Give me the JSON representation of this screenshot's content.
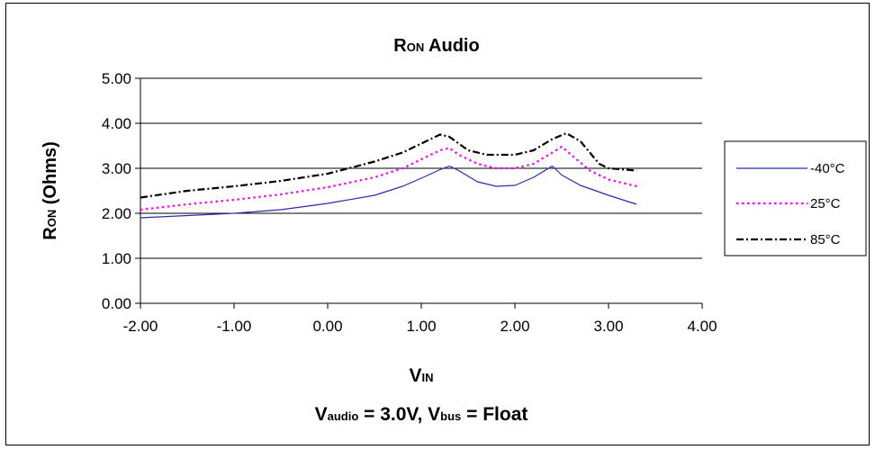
{
  "chart_data": {
    "type": "line",
    "title": {
      "main": "R",
      "sub": "ON",
      "rest": " Audio"
    },
    "ylabel": {
      "main": "R",
      "sub": "ON",
      "rest": " (Ohms)"
    },
    "xlabel": {
      "main": "V",
      "sub": "IN"
    },
    "subtitle": {
      "p1": "V",
      "p1sub": "audio",
      "p2": " = 3.0V, V",
      "p2sub": "bus",
      "p3": " = Float"
    },
    "xlim": [
      -2,
      4
    ],
    "ylim": [
      0,
      5
    ],
    "x_ticks": [
      "-2.00",
      "-1.00",
      "0.00",
      "1.00",
      "2.00",
      "3.00",
      "4.00"
    ],
    "y_ticks": [
      "0.00",
      "1.00",
      "2.00",
      "3.00",
      "4.00",
      "5.00"
    ],
    "grid": "horizontal",
    "legend_position": "right",
    "series": [
      {
        "name": "-40°C",
        "color": "#2b2bb0",
        "style": "solid",
        "points": [
          [
            -2.0,
            1.9
          ],
          [
            -1.5,
            1.95
          ],
          [
            -1.0,
            2.0
          ],
          [
            -0.5,
            2.08
          ],
          [
            0.0,
            2.22
          ],
          [
            0.5,
            2.4
          ],
          [
            0.8,
            2.6
          ],
          [
            1.0,
            2.78
          ],
          [
            1.2,
            2.97
          ],
          [
            1.3,
            3.05
          ],
          [
            1.4,
            2.95
          ],
          [
            1.6,
            2.7
          ],
          [
            1.8,
            2.6
          ],
          [
            2.0,
            2.62
          ],
          [
            2.2,
            2.8
          ],
          [
            2.4,
            3.05
          ],
          [
            2.5,
            2.85
          ],
          [
            2.7,
            2.62
          ],
          [
            3.0,
            2.4
          ],
          [
            3.3,
            2.2
          ]
        ]
      },
      {
        "name": "25°C",
        "color": "#ff00ff",
        "style": "dotted",
        "points": [
          [
            -2.0,
            2.08
          ],
          [
            -1.5,
            2.2
          ],
          [
            -1.0,
            2.3
          ],
          [
            -0.5,
            2.42
          ],
          [
            0.0,
            2.58
          ],
          [
            0.5,
            2.8
          ],
          [
            0.8,
            3.0
          ],
          [
            1.0,
            3.2
          ],
          [
            1.2,
            3.4
          ],
          [
            1.3,
            3.45
          ],
          [
            1.4,
            3.3
          ],
          [
            1.6,
            3.1
          ],
          [
            1.8,
            3.0
          ],
          [
            2.0,
            3.0
          ],
          [
            2.2,
            3.1
          ],
          [
            2.4,
            3.35
          ],
          [
            2.5,
            3.48
          ],
          [
            2.6,
            3.3
          ],
          [
            2.8,
            2.95
          ],
          [
            3.0,
            2.75
          ],
          [
            3.3,
            2.6
          ]
        ]
      },
      {
        "name": "85°C",
        "color": "#000000",
        "style": "dashdot",
        "points": [
          [
            -2.0,
            2.35
          ],
          [
            -1.5,
            2.5
          ],
          [
            -1.0,
            2.6
          ],
          [
            -0.5,
            2.72
          ],
          [
            0.0,
            2.88
          ],
          [
            0.5,
            3.15
          ],
          [
            0.8,
            3.35
          ],
          [
            1.0,
            3.55
          ],
          [
            1.2,
            3.75
          ],
          [
            1.3,
            3.7
          ],
          [
            1.5,
            3.4
          ],
          [
            1.7,
            3.3
          ],
          [
            2.0,
            3.3
          ],
          [
            2.2,
            3.4
          ],
          [
            2.4,
            3.65
          ],
          [
            2.55,
            3.78
          ],
          [
            2.7,
            3.6
          ],
          [
            2.9,
            3.1
          ],
          [
            3.0,
            3.0
          ],
          [
            3.3,
            2.95
          ]
        ]
      }
    ]
  }
}
